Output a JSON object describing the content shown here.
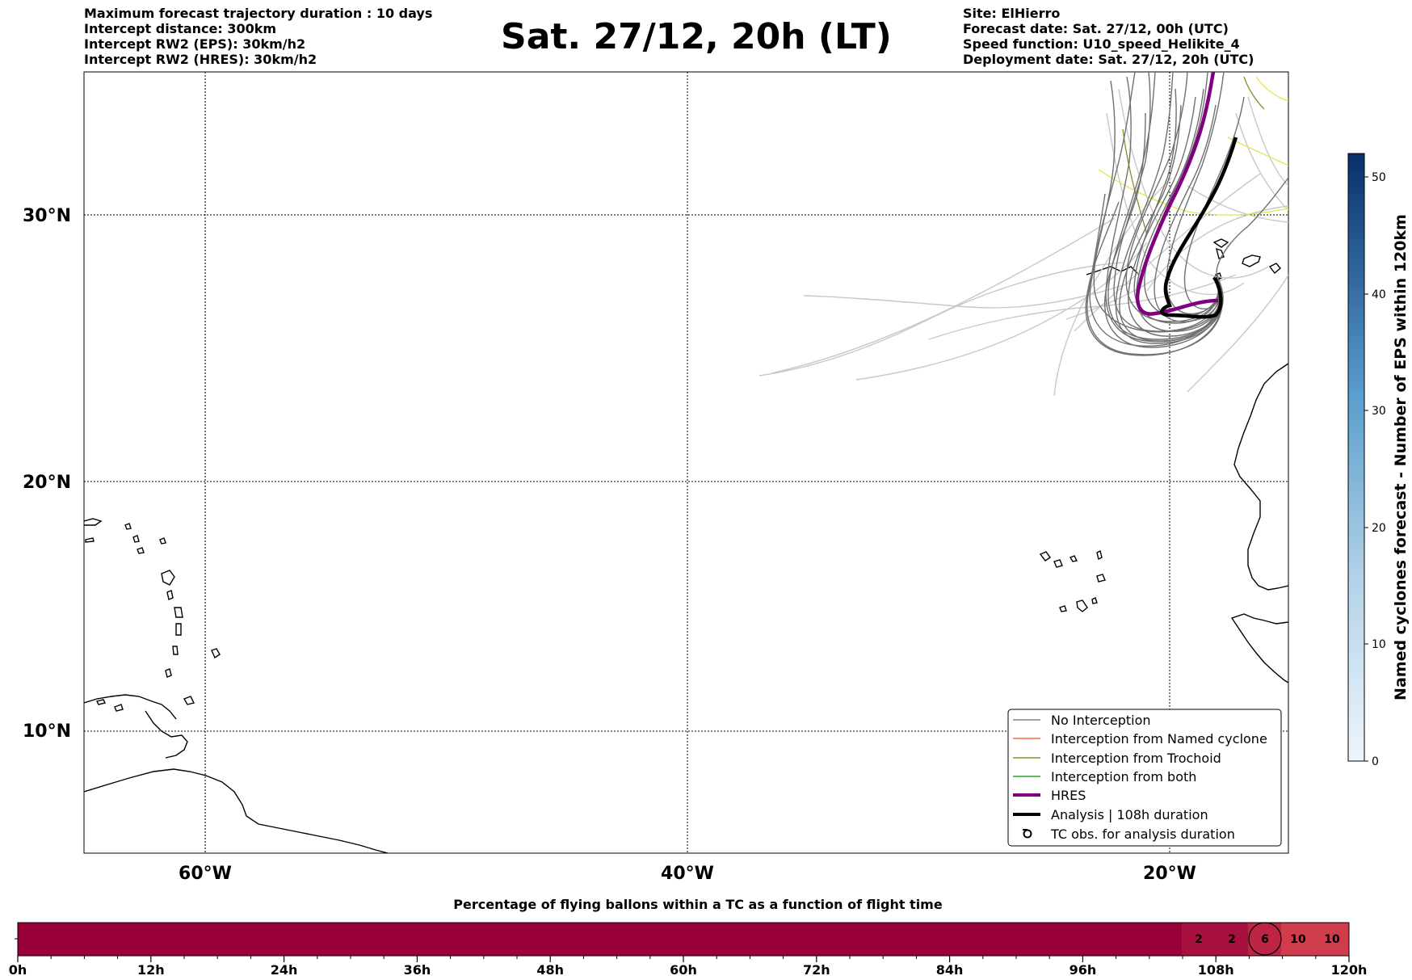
{
  "header": {
    "left_lines": [
      "Maximum forecast trajectory duration : 10 days",
      "Intercept distance: 300km",
      "Intercept RW2 (EPS):  30km/h2",
      "Intercept RW2 (HRES): 30km/h2"
    ],
    "title": "Sat. 27/12, 20h (LT)",
    "right_lines": [
      "Site: ElHierro",
      "Forecast date: Sat. 27/12, 00h (UTC)",
      "Speed function: U10_speed_Helikite_4",
      "Deployment date: Sat. 27/12, 20h (UTC)"
    ]
  },
  "map": {
    "lat_labels": [
      "30°N",
      "20°N",
      "10°N"
    ],
    "lon_labels": [
      "60°W",
      "40°W",
      "20°W"
    ],
    "grid": true
  },
  "legend": {
    "entries": [
      {
        "label": "No Interception",
        "color": "#808080"
      },
      {
        "label": "Interception from Named cyclone",
        "color": "#ff6633"
      },
      {
        "label": "Interception from Trochoid",
        "color": "#8b8b2a"
      },
      {
        "label": "Interception from both",
        "color": "#2ca02c"
      },
      {
        "label": "HRES",
        "color": "#800080"
      },
      {
        "label": "Analysis | 108h duration",
        "color": "#000000"
      },
      {
        "label": "TC obs. for analysis duration",
        "color": "#000000"
      }
    ]
  },
  "colorbar": {
    "label": "Named cyclones forecast - Number of EPS within 120km",
    "ticks": [
      "0",
      "10",
      "20",
      "30",
      "40",
      "50"
    ],
    "color_low": "#eaf2fb",
    "color_high": "#08306b"
  },
  "timeline": {
    "title": "Percentage of flying ballons within a TC as a function of flight time",
    "ticks": [
      "0h",
      "12h",
      "24h",
      "36h",
      "48h",
      "60h",
      "72h",
      "84h",
      "96h",
      "108h",
      "120h"
    ],
    "cells": [
      "2",
      "2",
      "6",
      "10",
      "10"
    ],
    "highlight_index": 2,
    "base_color": "#9b003b"
  }
}
